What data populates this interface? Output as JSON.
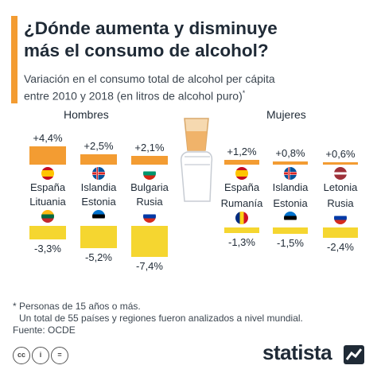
{
  "header": {
    "title_line1": "¿Dónde aumenta y disminuye",
    "title_line2": "más el consumo de alcohol?",
    "subtitle_line1": "Variación en el consumo total de alcohol per cápita",
    "subtitle_line2": "entre 2010 y 2018 (en litros de alcohol puro)",
    "subtitle_mark": "*"
  },
  "colors": {
    "increase": "#f39c32",
    "decrease": "#f5d630",
    "accent": "#f39c32"
  },
  "chart_data": [
    {
      "type": "bar",
      "title": "Hombres",
      "categories": [
        "España",
        "Islandia",
        "Bulgaria",
        "Lituania",
        "Estonia",
        "Rusia"
      ],
      "values": [
        4.4,
        2.5,
        2.1,
        -3.3,
        -5.2,
        -7.4
      ],
      "labels": [
        "+4,4%",
        "+2,5%",
        "+2,1%",
        "-3,3%",
        "-5,2%",
        "-7,4%"
      ],
      "flags": [
        "spain-flag-icon",
        "iceland-flag-icon",
        "bulgaria-flag-icon",
        "lithuania-flag-icon",
        "estonia-flag-icon",
        "russia-flag-icon"
      ]
    },
    {
      "type": "bar",
      "title": "Mujeres",
      "categories": [
        "España",
        "Islandia",
        "Letonia",
        "Rumanía",
        "Estonia",
        "Rusia"
      ],
      "values": [
        1.2,
        0.8,
        0.6,
        -1.3,
        -1.5,
        -2.4
      ],
      "labels": [
        "+1,2%",
        "+0,8%",
        "+0,6%",
        "-1,3%",
        "-1,5%",
        "-2,4%"
      ],
      "flags": [
        "spain-flag-icon",
        "iceland-flag-icon",
        "latvia-flag-icon",
        "romania-flag-icon",
        "estonia-flag-icon",
        "russia-flag-icon"
      ]
    }
  ],
  "notes": {
    "line1": "* Personas de 15 años o más.",
    "line2": "Un total de 55 países y regiones fueron analizados a nivel mundial.",
    "source": "Fuente: OCDE"
  },
  "footer": {
    "icons": [
      "cc-icon",
      "attribution-icon",
      "no-derivatives-icon"
    ],
    "cc_glyph": "cc",
    "by_glyph": "i",
    "nd_glyph": "=",
    "brand": "statista"
  }
}
